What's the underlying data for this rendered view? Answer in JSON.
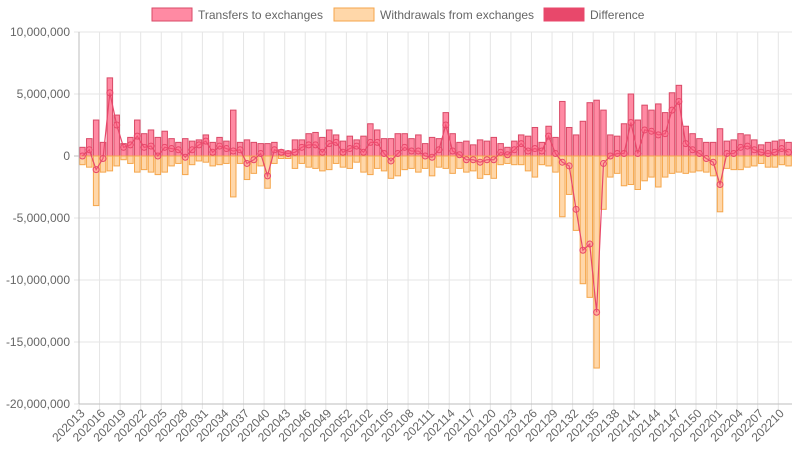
{
  "chart_data": {
    "type": "bar",
    "legend_position": "top",
    "grid": true,
    "ylim": [
      -20000000,
      10000000
    ],
    "y_ticks": [
      "10,000,000",
      "5,000,000",
      "0",
      "-5,000,000",
      "-10,000,000",
      "-15,000,000",
      "-20,000,000"
    ],
    "y_tick_values": [
      10000000,
      5000000,
      0,
      -5000000,
      -10000000,
      -15000000,
      -20000000
    ],
    "categories": [
      "202013",
      "202014",
      "202015",
      "202016",
      "202017",
      "202018",
      "202019",
      "202020",
      "202021",
      "202022",
      "202023",
      "202024",
      "202025",
      "202026",
      "202027",
      "202028",
      "202029",
      "202030",
      "202031",
      "202032",
      "202033",
      "202034",
      "202035",
      "202036",
      "202037",
      "202038",
      "202039",
      "202040",
      "202041",
      "202042",
      "202043",
      "202044",
      "202045",
      "202046",
      "202047",
      "202048",
      "202049",
      "202050",
      "202051",
      "202052",
      "202053",
      "202101",
      "202102",
      "202103",
      "202104",
      "202105",
      "202106",
      "202107",
      "202108",
      "202109",
      "202110",
      "202111",
      "202112",
      "202113",
      "202114",
      "202115",
      "202116",
      "202117",
      "202118",
      "202119",
      "202120",
      "202121",
      "202122",
      "202123",
      "202124",
      "202125",
      "202126",
      "202127",
      "202128",
      "202129",
      "202130",
      "202131",
      "202132",
      "202133",
      "202134",
      "202135",
      "202136",
      "202137",
      "202138",
      "202139",
      "202140",
      "202141",
      "202142",
      "202143",
      "202144",
      "202145",
      "202146",
      "202147",
      "202148",
      "202149",
      "202150",
      "202151",
      "202152",
      "202201",
      "202202",
      "202203",
      "202204",
      "202205",
      "202206",
      "202207",
      "202208",
      "202209",
      "202210",
      "202211"
    ],
    "x_tick_labels": [
      "202013",
      "202016",
      "202019",
      "202022",
      "202025",
      "202028",
      "202031",
      "202034",
      "202037",
      "202040",
      "202043",
      "202046",
      "202049",
      "202052",
      "202102",
      "202105",
      "202108",
      "202111",
      "202114",
      "202117",
      "202120",
      "202123",
      "202126",
      "202129",
      "202132",
      "202135",
      "202138",
      "202141",
      "202144",
      "202147",
      "202150",
      "202201",
      "202204",
      "202207",
      "202210"
    ],
    "series": [
      {
        "name": "Transfers to exchanges",
        "kind": "bar",
        "color": "#ff6384",
        "border": "#d94a67",
        "values": [
          700000,
          1400000,
          2900000,
          1100000,
          6300000,
          3300000,
          1000000,
          1500000,
          2900000,
          1800000,
          2100000,
          1500000,
          2000000,
          1400000,
          1100000,
          1400000,
          1200000,
          1300000,
          1700000,
          1100000,
          1500000,
          1200000,
          3700000,
          1100000,
          1300000,
          1100000,
          1000000,
          1000000,
          1100000,
          500000,
          400000,
          1300000,
          1300000,
          1800000,
          1900000,
          1500000,
          2100000,
          1700000,
          1200000,
          1600000,
          1300000,
          1600000,
          2600000,
          2100000,
          1400000,
          1400000,
          1800000,
          1800000,
          1400000,
          1700000,
          1000000,
          1500000,
          1400000,
          3500000,
          1800000,
          1100000,
          1200000,
          900000,
          1300000,
          1200000,
          1500000,
          1000000,
          700000,
          1200000,
          1700000,
          1600000,
          2300000,
          1100000,
          2400000,
          1500000,
          4400000,
          2300000,
          1700000,
          2800000,
          4300000,
          4500000,
          3700000,
          1700000,
          1600000,
          2600000,
          5000000,
          2900000,
          4100000,
          3700000,
          4200000,
          3500000,
          5100000,
          5700000,
          2400000,
          1800000,
          1400000,
          1100000,
          1100000,
          2200000,
          1200000,
          1300000,
          1800000,
          1700000,
          1300000,
          900000,
          1100000,
          1200000,
          1300000,
          1100000
        ],
        "labels_shown": false
      },
      {
        "name": "Withdrawals from exchanges",
        "kind": "bar",
        "color": "#ffcd94",
        "border": "#f5a64b",
        "values": [
          -700000,
          -900000,
          -4000000,
          -1300000,
          -1200000,
          -800000,
          -300000,
          -600000,
          -1300000,
          -1100000,
          -1300000,
          -1500000,
          -1300000,
          -800000,
          -600000,
          -1500000,
          -700000,
          -400000,
          -500000,
          -800000,
          -700000,
          -600000,
          -3300000,
          -600000,
          -1900000,
          -1400000,
          -800000,
          -2600000,
          -600000,
          -200000,
          -200000,
          -1000000,
          -600000,
          -900000,
          -1000000,
          -1200000,
          -1100000,
          -600000,
          -900000,
          -1000000,
          -500000,
          -1300000,
          -1500000,
          -1000000,
          -1200000,
          -1800000,
          -1600000,
          -1100000,
          -1000000,
          -1300000,
          -1000000,
          -1600000,
          -900000,
          -1000000,
          -1400000,
          -1000000,
          -1300000,
          -1200000,
          -1800000,
          -1500000,
          -1800000,
          -700000,
          -600000,
          -700000,
          -700000,
          -1200000,
          -1700000,
          -700000,
          -800000,
          -1300000,
          -4900000,
          -3100000,
          -6000000,
          -10300000,
          -11400000,
          -17100000,
          -4300000,
          -1700000,
          -1400000,
          -2400000,
          -2300000,
          -2700000,
          -2000000,
          -1700000,
          -2500000,
          -1700000,
          -1400000,
          -1300000,
          -1400000,
          -1300000,
          -1200000,
          -1300000,
          -1600000,
          -4500000,
          -1000000,
          -1100000,
          -1100000,
          -900000,
          -800000,
          -600000,
          -900000,
          -900000,
          -700000,
          -800000
        ],
        "labels_shown": false
      },
      {
        "name": "Difference",
        "kind": "line",
        "color": "#e8486b",
        "values": [
          0,
          500000,
          -1100000,
          -200000,
          5100000,
          2500000,
          700000,
          900000,
          1600000,
          700000,
          800000,
          0,
          700000,
          600000,
          500000,
          -100000,
          500000,
          900000,
          1200000,
          300000,
          800000,
          600000,
          400000,
          500000,
          -600000,
          -300000,
          200000,
          -1600000,
          500000,
          300000,
          200000,
          300000,
          700000,
          900000,
          900000,
          300000,
          1000000,
          1100000,
          300000,
          600000,
          800000,
          300000,
          1100000,
          1100000,
          200000,
          -400000,
          200000,
          700000,
          400000,
          400000,
          0,
          -100000,
          500000,
          2500000,
          400000,
          100000,
          -300000,
          -300000,
          -500000,
          -300000,
          -300000,
          300000,
          100000,
          500000,
          1000000,
          400000,
          600000,
          400000,
          1600000,
          200000,
          -500000,
          -800000,
          -4300000,
          -7600000,
          -7100000,
          -12600000,
          -600000,
          0,
          200000,
          200000,
          2700000,
          200000,
          2100000,
          2000000,
          1700000,
          1800000,
          3700000,
          4400000,
          1000000,
          500000,
          200000,
          -200000,
          -500000,
          -2300000,
          200000,
          200000,
          700000,
          800000,
          500000,
          300000,
          200000,
          300000,
          600000,
          300000
        ]
      }
    ]
  }
}
